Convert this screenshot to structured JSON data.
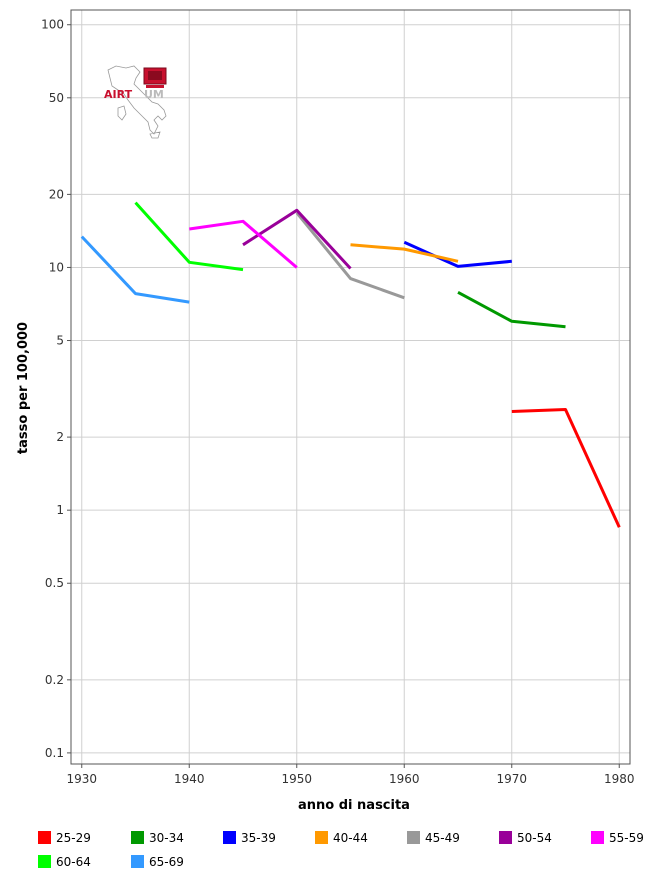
{
  "logo": {
    "text_left": "AIRT",
    "text_right": "UM"
  },
  "chart_data": {
    "type": "line",
    "xlabel": "anno di nascita",
    "ylabel": "tasso per 100,000",
    "y_scale": "log",
    "xlim": [
      1929,
      1981
    ],
    "ylim": [
      0.09,
      115
    ],
    "x_ticks": [
      1930,
      1940,
      1950,
      1960,
      1970,
      1980
    ],
    "x_tick_labels": [
      "1930",
      "1940",
      "1950",
      "1960",
      "1970",
      "1980"
    ],
    "y_ticks": [
      0.1,
      0.2,
      0.5,
      1,
      2,
      5,
      10,
      20,
      50,
      100
    ],
    "y_tick_labels": [
      "0.1",
      "0.2",
      "0.5",
      "1",
      "2",
      "5",
      "10",
      "20",
      "50",
      "100"
    ],
    "grid": true,
    "legend_position": "bottom",
    "series": [
      {
        "name": "25-29",
        "color": "#ff0000",
        "x": [
          1970,
          1975,
          1980
        ],
        "y": [
          2.55,
          2.6,
          0.85
        ]
      },
      {
        "name": "30-34",
        "color": "#009900",
        "x": [
          1965,
          1970,
          1975
        ],
        "y": [
          7.9,
          6.0,
          5.7
        ]
      },
      {
        "name": "35-39",
        "color": "#0000ff",
        "x": [
          1960,
          1965,
          1970
        ],
        "y": [
          12.7,
          10.1,
          10.6
        ]
      },
      {
        "name": "40-44",
        "color": "#ff9900",
        "x": [
          1955,
          1960,
          1965
        ],
        "y": [
          12.4,
          11.9,
          10.6
        ]
      },
      {
        "name": "45-49",
        "color": "#999999",
        "x": [
          1950,
          1955,
          1960
        ],
        "y": [
          16.8,
          9.0,
          7.5
        ]
      },
      {
        "name": "50-54",
        "color": "#990099",
        "x": [
          1945,
          1950,
          1955
        ],
        "y": [
          12.4,
          17.2,
          9.9
        ]
      },
      {
        "name": "55-59",
        "color": "#ff00ff",
        "x": [
          1940,
          1945,
          1950
        ],
        "y": [
          14.4,
          15.5,
          10.0
        ]
      },
      {
        "name": "60-64",
        "color": "#00ff00",
        "x": [
          1935,
          1940,
          1945
        ],
        "y": [
          18.5,
          10.5,
          9.8
        ]
      },
      {
        "name": "65-69",
        "color": "#3399ff",
        "x": [
          1930,
          1935,
          1940
        ],
        "y": [
          13.4,
          7.8,
          7.2
        ]
      }
    ]
  }
}
